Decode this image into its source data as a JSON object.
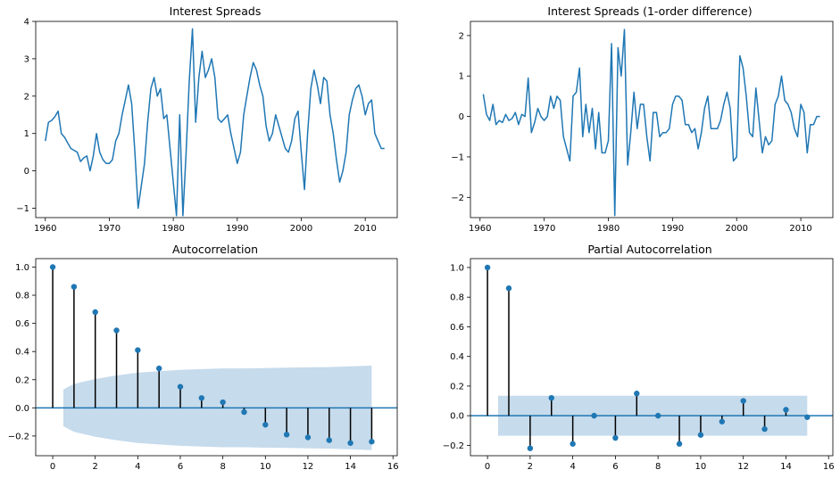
{
  "colors": {
    "line": "#1f77b4",
    "stem": "#000000",
    "band": "#c6dbec"
  },
  "chart_data": [
    {
      "type": "line",
      "title": "Interest Spreads",
      "xlim": [
        1958.5,
        2015.0
      ],
      "ylim": [
        -1.25,
        4.0
      ],
      "xticks": [
        1960,
        1970,
        1980,
        1990,
        2000,
        2010
      ],
      "yticks": [
        -1,
        0,
        1,
        2,
        3,
        4
      ],
      "series": [
        {
          "x": [
            1960.0,
            1960.5,
            1961.0,
            1961.5,
            1962.0,
            1962.5,
            1963.0,
            1963.5,
            1964.0,
            1964.5,
            1965.0,
            1965.5,
            1966.0,
            1966.5,
            1967.0,
            1967.5,
            1968.0,
            1968.5,
            1969.0,
            1969.5,
            1970.0,
            1970.5,
            1971.0,
            1971.5,
            1972.0,
            1972.5,
            1973.0,
            1973.5,
            1974.0,
            1974.5,
            1975.0,
            1975.5,
            1976.0,
            1976.5,
            1977.0,
            1977.5,
            1978.0,
            1978.5,
            1979.0,
            1979.5,
            1980.0,
            1980.5,
            1981.0,
            1981.5,
            1982.0,
            1982.5,
            1983.0,
            1983.5,
            1984.0,
            1984.5,
            1985.0,
            1985.5,
            1986.0,
            1986.5,
            1987.0,
            1987.5,
            1988.0,
            1988.5,
            1989.0,
            1989.5,
            1990.0,
            1990.5,
            1991.0,
            1991.5,
            1992.0,
            1992.5,
            1993.0,
            1993.5,
            1994.0,
            1994.5,
            1995.0,
            1995.5,
            1996.0,
            1996.5,
            1997.0,
            1997.5,
            1998.0,
            1998.5,
            1999.0,
            1999.5,
            2000.0,
            2000.5,
            2001.0,
            2001.5,
            2002.0,
            2002.5,
            2003.0,
            2003.5,
            2004.0,
            2004.5,
            2005.0,
            2005.5,
            2006.0,
            2006.5,
            2007.0,
            2007.5,
            2008.0,
            2008.5,
            2009.0,
            2009.5,
            2010.0,
            2010.5,
            2011.0,
            2011.5,
            2012.0,
            2012.5,
            2013.0
          ],
          "y": [
            0.8,
            1.3,
            1.35,
            1.45,
            1.6,
            1.0,
            0.9,
            0.75,
            0.6,
            0.55,
            0.5,
            0.25,
            0.35,
            0.4,
            0.0,
            0.4,
            1.0,
            0.5,
            0.3,
            0.2,
            0.2,
            0.3,
            0.8,
            1.0,
            1.5,
            1.9,
            2.3,
            1.8,
            0.5,
            -1.0,
            -0.4,
            0.2,
            1.3,
            2.2,
            2.5,
            2.0,
            2.2,
            1.4,
            1.5,
            0.6,
            -0.3,
            -1.2,
            1.5,
            -1.2,
            0.5,
            2.4,
            3.8,
            1.3,
            2.5,
            3.2,
            2.5,
            2.7,
            3.0,
            2.5,
            1.4,
            1.3,
            1.4,
            1.5,
            1.0,
            0.6,
            0.2,
            0.5,
            1.5,
            2.0,
            2.5,
            2.9,
            2.7,
            2.3,
            2.0,
            1.2,
            0.8,
            1.0,
            1.5,
            1.2,
            0.9,
            0.6,
            0.5,
            0.8,
            1.4,
            1.6,
            0.5,
            -0.5,
            1.0,
            2.2,
            2.7,
            2.3,
            1.8,
            2.5,
            2.4,
            1.5,
            1.0,
            0.3,
            -0.3,
            0.0,
            0.5,
            1.5,
            1.9,
            2.2,
            2.3,
            2.0,
            1.5,
            1.8,
            1.9,
            1.0,
            0.8,
            0.6,
            0.6
          ]
        }
      ]
    },
    {
      "type": "line",
      "title": "Interest Spreads (1-order difference)",
      "xlim": [
        1958.5,
        2015.0
      ],
      "ylim": [
        -2.5,
        2.35
      ],
      "xticks": [
        1960,
        1970,
        1980,
        1990,
        2000,
        2010
      ],
      "yticks": [
        -2,
        -1,
        0,
        1,
        2
      ],
      "series": [
        {
          "x": [
            1960.5,
            1961.0,
            1961.5,
            1962.0,
            1962.5,
            1963.0,
            1963.5,
            1964.0,
            1964.5,
            1965.0,
            1965.5,
            1966.0,
            1966.5,
            1967.0,
            1967.5,
            1968.0,
            1968.5,
            1969.0,
            1969.5,
            1970.0,
            1970.5,
            1971.0,
            1971.5,
            1972.0,
            1972.5,
            1973.0,
            1973.5,
            1974.0,
            1974.5,
            1975.0,
            1975.5,
            1976.0,
            1976.5,
            1977.0,
            1977.5,
            1978.0,
            1978.5,
            1979.0,
            1979.5,
            1980.0,
            1980.5,
            1981.0,
            1981.5,
            1982.0,
            1982.5,
            1983.0,
            1983.5,
            1984.0,
            1984.5,
            1985.0,
            1985.5,
            1986.0,
            1986.5,
            1987.0,
            1987.5,
            1988.0,
            1988.5,
            1989.0,
            1989.5,
            1990.0,
            1990.5,
            1991.0,
            1991.5,
            1992.0,
            1992.5,
            1993.0,
            1993.5,
            1994.0,
            1994.5,
            1995.0,
            1995.5,
            1996.0,
            1996.5,
            1997.0,
            1997.5,
            1998.0,
            1998.5,
            1999.0,
            1999.5,
            2000.0,
            2000.5,
            2001.0,
            2001.5,
            2002.0,
            2002.5,
            2003.0,
            2003.5,
            2004.0,
            2004.5,
            2005.0,
            2005.5,
            2006.0,
            2006.5,
            2007.0,
            2007.5,
            2008.0,
            2008.5,
            2009.0,
            2009.5,
            2010.0,
            2010.5,
            2011.0,
            2011.5,
            2012.0,
            2012.5,
            2013.0
          ],
          "y": [
            0.55,
            0.05,
            -0.1,
            0.3,
            -0.2,
            -0.1,
            -0.15,
            0.05,
            -0.1,
            -0.05,
            0.1,
            -0.2,
            0.05,
            0.0,
            0.95,
            -0.4,
            -0.15,
            0.2,
            0.0,
            -0.1,
            0.0,
            0.5,
            0.2,
            0.5,
            0.4,
            -0.5,
            -0.8,
            -1.1,
            0.5,
            0.6,
            1.2,
            -0.5,
            0.3,
            -0.4,
            0.2,
            -0.8,
            0.1,
            -0.9,
            -0.9,
            -0.6,
            1.8,
            -2.45,
            1.7,
            1.0,
            2.15,
            -1.2,
            -0.4,
            0.6,
            -0.3,
            0.3,
            0.3,
            -0.5,
            -1.1,
            0.1,
            0.1,
            -0.5,
            -0.4,
            -0.4,
            -0.3,
            0.3,
            0.5,
            0.5,
            0.4,
            -0.2,
            -0.2,
            -0.4,
            -0.3,
            -0.8,
            -0.4,
            0.2,
            0.5,
            -0.3,
            -0.3,
            -0.3,
            -0.1,
            0.3,
            0.6,
            0.2,
            -1.1,
            -1.0,
            1.5,
            1.2,
            0.5,
            -0.4,
            -0.5,
            0.7,
            -0.1,
            -0.9,
            -0.5,
            -0.7,
            -0.6,
            0.3,
            0.5,
            1.0,
            0.4,
            0.3,
            0.1,
            -0.3,
            -0.5,
            0.3,
            0.1,
            -0.9,
            -0.2,
            -0.2,
            0.0,
            0.0
          ]
        }
      ]
    },
    {
      "type": "stem",
      "title": "Autocorrelation",
      "xlim": [
        -0.8,
        16.2
      ],
      "ylim": [
        -0.34,
        1.06
      ],
      "xticks": [
        0,
        2,
        4,
        6,
        8,
        10,
        12,
        14,
        16
      ],
      "yticks": [
        -0.2,
        0.0,
        0.2,
        0.4,
        0.6,
        0.8,
        1.0
      ],
      "lags": [
        0,
        1,
        2,
        3,
        4,
        5,
        6,
        7,
        8,
        9,
        10,
        11,
        12,
        13,
        14,
        15
      ],
      "values": [
        1.0,
        0.86,
        0.68,
        0.55,
        0.41,
        0.28,
        0.15,
        0.07,
        0.04,
        -0.03,
        -0.12,
        -0.19,
        -0.21,
        -0.23,
        -0.25,
        -0.24
      ],
      "confint": [
        0.13,
        0.17,
        0.205,
        0.23,
        0.25,
        0.26,
        0.27,
        0.275,
        0.28,
        0.28,
        0.283,
        0.285,
        0.288,
        0.29,
        0.295,
        0.3
      ]
    },
    {
      "type": "stem",
      "title": "Partial Autocorrelation",
      "xlim": [
        -0.8,
        16.2
      ],
      "ylim": [
        -0.27,
        1.06
      ],
      "xticks": [
        0,
        2,
        4,
        6,
        8,
        10,
        12,
        14,
        16
      ],
      "yticks": [
        -0.2,
        0.0,
        0.2,
        0.4,
        0.6,
        0.8,
        1.0
      ],
      "lags": [
        0,
        1,
        2,
        3,
        4,
        5,
        6,
        7,
        8,
        9,
        10,
        11,
        12,
        13,
        14,
        15
      ],
      "values": [
        1.0,
        0.86,
        -0.22,
        0.12,
        -0.19,
        0.0,
        -0.15,
        0.15,
        0.0,
        -0.19,
        -0.13,
        -0.04,
        0.1,
        -0.09,
        0.04,
        -0.01
      ],
      "confint": [
        0.135,
        0.135,
        0.135,
        0.135,
        0.135,
        0.135,
        0.135,
        0.135,
        0.135,
        0.135,
        0.135,
        0.135,
        0.135,
        0.135,
        0.135,
        0.135
      ]
    }
  ]
}
